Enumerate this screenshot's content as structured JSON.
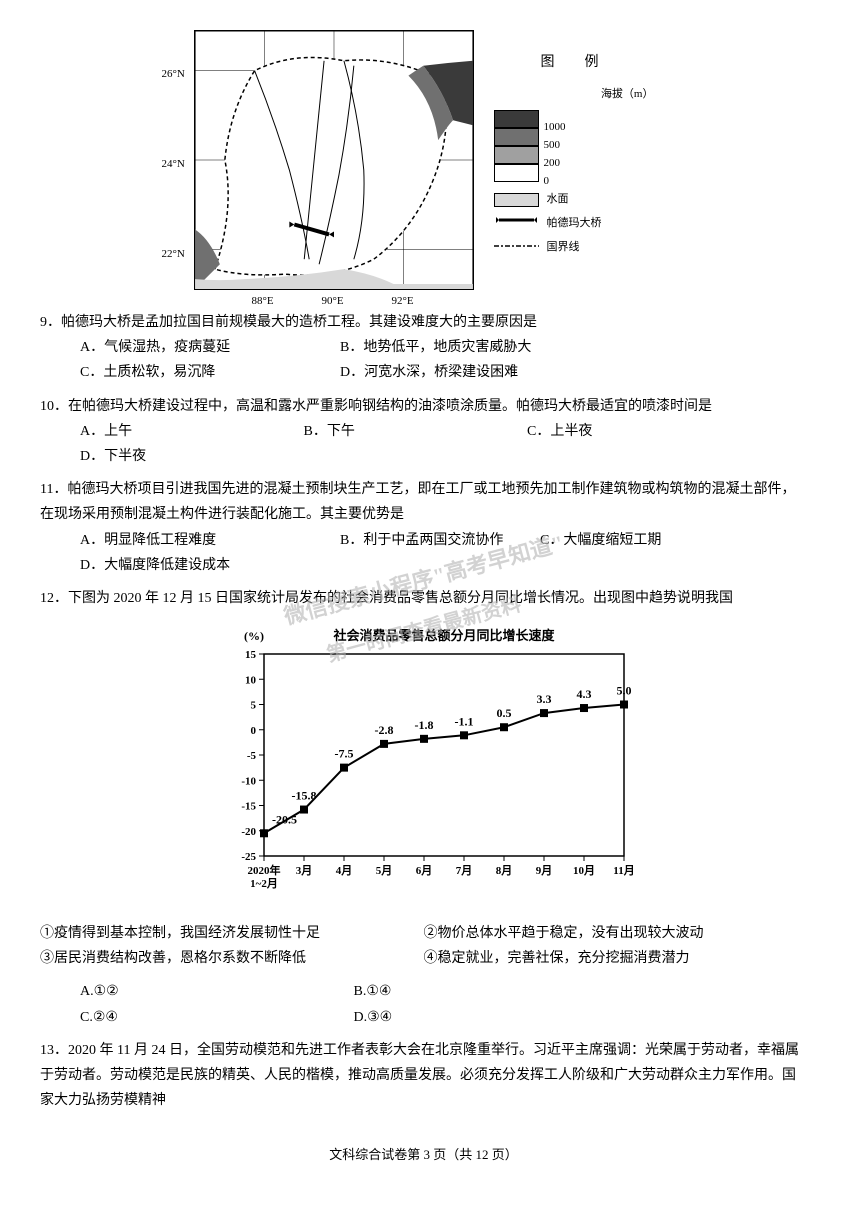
{
  "map": {
    "lat_labels": [
      "26°N",
      "24°N",
      "22°N"
    ],
    "lon_labels": [
      "88°E",
      "90°E",
      "92°E"
    ],
    "legend_title": "图　例",
    "legend_subtitle": "海拔（m）",
    "elevations": [
      {
        "color": "#3a3a3a",
        "label": "1000"
      },
      {
        "color": "#707070",
        "label": "500"
      },
      {
        "color": "#a0a0a0",
        "label": "200"
      },
      {
        "color": "#ffffff",
        "label": "0"
      }
    ],
    "water_label": "水面",
    "water_color": "#d8d8d8",
    "bridge_label": "帕德玛大桥",
    "border_label": "国界线"
  },
  "q9": {
    "text": "9．帕德玛大桥是孟加拉国目前规模最大的造桥工程。其建设难度大的主要原因是",
    "a": "A．气候湿热，疫病蔓延",
    "b": "B．地势低平，地质灾害威胁大",
    "c": "C．土质松软，易沉降",
    "d": "D．河宽水深，桥梁建设困难"
  },
  "q10": {
    "text": "10．在帕德玛大桥建设过程中，高温和露水严重影响钢结构的油漆喷涂质量。帕德玛大桥最适宜的喷漆时间是",
    "a": "A．上午",
    "b": "B．下午",
    "c": "C．上半夜",
    "d": "D．下半夜"
  },
  "q11": {
    "text": "11．帕德玛大桥项目引进我国先进的混凝土预制块生产工艺，即在工厂或工地预先加工制作建筑物或构筑物的混凝土部件，在现场采用预制混凝土构件进行装配化施工。其主要优势是",
    "a": "A．明显降低工程难度",
    "b": "B．利于中孟两国交流协作",
    "c": "C．大幅度缩短工期",
    "d": "D．大幅度降低建设成本"
  },
  "q12": {
    "text": "12．下图为 2020 年 12 月 15 日国家统计局发布的社会消费品零售总额分月同比增长情况。出现图中趋势说明我国",
    "statements": {
      "s1": "①疫情得到基本控制，我国经济发展韧性十足",
      "s2": "②物价总体水平趋于稳定，没有出现较大波动",
      "s3": "③居民消费结构改善，恩格尔系数不断降低",
      "s4": "④稳定就业，完善社保，充分挖掘消费潜力"
    },
    "a": "A.①②",
    "b": "B.①④",
    "c": "C.②④",
    "d": "D.③④"
  },
  "q13": {
    "text": "13．2020 年 11 月 24 日，全国劳动模范和先进工作者表彰大会在北京隆重举行。习近平主席强调：光荣属于劳动者，幸福属于劳动者。劳动模范是民族的精英、人民的楷模，推动高质量发展。必须充分发挥工人阶级和广大劳动群众主力军作用。国家大力弘扬劳模精神"
  },
  "chart": {
    "title": "社会消费品零售总额分月同比增长速度",
    "y_label": "(%)",
    "y_min": -25,
    "y_max": 15,
    "y_step": 5,
    "y_ticks": [
      15,
      10,
      5,
      0,
      -5,
      -10,
      -15,
      -20,
      -25
    ],
    "x_labels": [
      "2020年\n1~2月",
      "3月",
      "4月",
      "5月",
      "6月",
      "7月",
      "8月",
      "9月",
      "10月",
      "11月"
    ],
    "values": [
      -20.5,
      -15.8,
      -7.5,
      -2.8,
      -1.8,
      -1.1,
      0.5,
      3.3,
      4.3,
      5.0
    ],
    "line_color": "#000000",
    "marker_color": "#000000",
    "marker_size": 5,
    "background_color": "#ffffff"
  },
  "watermark": {
    "line1": "微信搜索小程序\"高考早知道\"",
    "line2": "第一时间查看最新资料"
  },
  "footer": "文科综合试卷第 3 页（共 12 页）"
}
